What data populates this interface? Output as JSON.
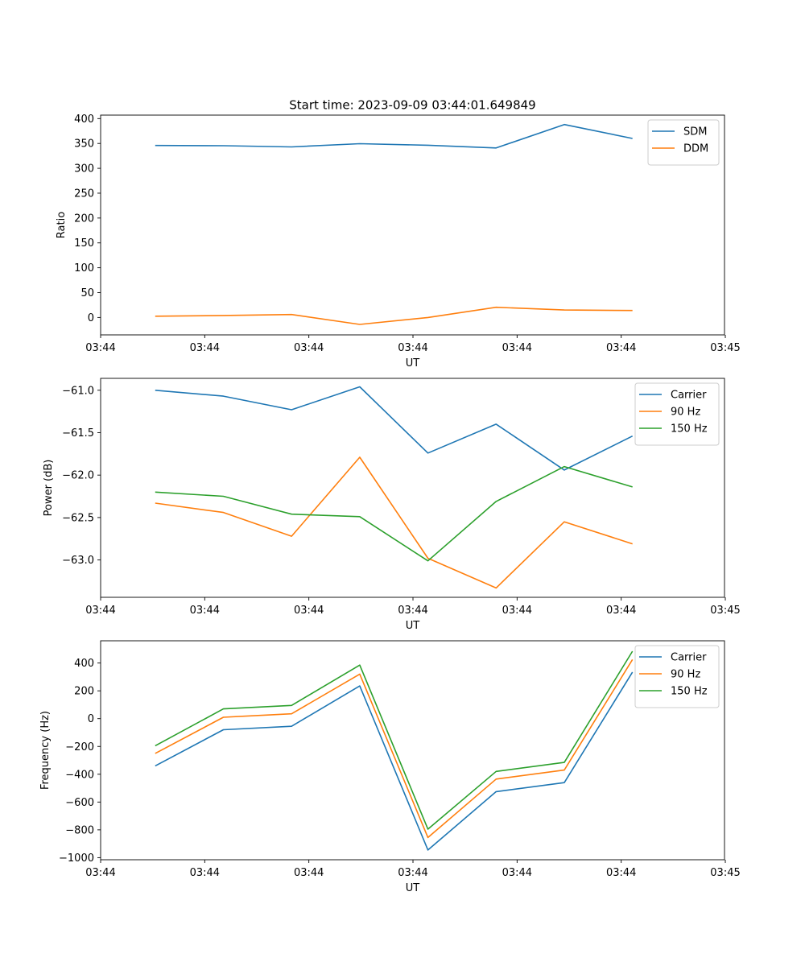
{
  "title": "Start time: 2023-09-09 03:44:01.649849",
  "colors": {
    "blue": "#1f77b4",
    "orange": "#ff7f0e",
    "green": "#2ca02c"
  },
  "chart_data": [
    {
      "type": "line",
      "id": "ratio",
      "xlabel": "UT",
      "ylabel": "Ratio",
      "x": [
        1,
        2,
        3,
        4,
        5,
        6,
        7,
        8
      ],
      "xlim": [
        0.2,
        9.35
      ],
      "x_ticks": [
        {
          "x": 0.2,
          "label": "03:44"
        },
        {
          "x": 1.727,
          "label": "03:44"
        },
        {
          "x": 3.254,
          "label": "03:44"
        },
        {
          "x": 4.781,
          "label": "03:44"
        },
        {
          "x": 6.308,
          "label": "03:44"
        },
        {
          "x": 7.835,
          "label": "03:44"
        },
        {
          "x": 9.362,
          "label": "03:45"
        }
      ],
      "ylim": [
        -35,
        407
      ],
      "y_ticks": [
        {
          "v": 0,
          "label": "0"
        },
        {
          "v": 50,
          "label": "50"
        },
        {
          "v": 100,
          "label": "100"
        },
        {
          "v": 150,
          "label": "150"
        },
        {
          "v": 200,
          "label": "200"
        },
        {
          "v": 250,
          "label": "250"
        },
        {
          "v": 300,
          "label": "300"
        },
        {
          "v": 350,
          "label": "350"
        },
        {
          "v": 400,
          "label": "400"
        }
      ],
      "legend_position": "top-right",
      "series": [
        {
          "name": "SDM",
          "color": "blue",
          "values": [
            346,
            345.5,
            343,
            349.5,
            346.5,
            341,
            388,
            360
          ]
        },
        {
          "name": "DDM",
          "color": "orange",
          "values": [
            2.5,
            4,
            6,
            -14,
            0,
            20.5,
            15,
            14
          ]
        }
      ]
    },
    {
      "type": "line",
      "id": "power",
      "xlabel": "UT",
      "ylabel": "Power (dB)",
      "x": [
        1,
        2,
        3,
        4,
        5,
        6,
        7,
        8
      ],
      "xlim": [
        0.2,
        9.35
      ],
      "x_ticks": [
        {
          "x": 0.2,
          "label": "03:44"
        },
        {
          "x": 1.727,
          "label": "03:44"
        },
        {
          "x": 3.254,
          "label": "03:44"
        },
        {
          "x": 4.781,
          "label": "03:44"
        },
        {
          "x": 6.308,
          "label": "03:44"
        },
        {
          "x": 7.835,
          "label": "03:44"
        },
        {
          "x": 9.362,
          "label": "03:45"
        }
      ],
      "ylim": [
        -63.44,
        -60.86
      ],
      "y_ticks": [
        {
          "v": -63.0,
          "label": "−63.0"
        },
        {
          "v": -62.5,
          "label": "−62.5"
        },
        {
          "v": -62.0,
          "label": "−62.0"
        },
        {
          "v": -61.5,
          "label": "−61.5"
        },
        {
          "v": -61.0,
          "label": "−61.0"
        }
      ],
      "legend_position": "top-right",
      "series": [
        {
          "name": "Carrier",
          "color": "blue",
          "values": [
            -61.0,
            -61.07,
            -61.23,
            -60.96,
            -61.74,
            -61.4,
            -61.94,
            -61.54
          ]
        },
        {
          "name": "90 Hz",
          "color": "orange",
          "values": [
            -62.33,
            -62.44,
            -62.72,
            -61.79,
            -62.98,
            -63.33,
            -62.55,
            -62.81
          ]
        },
        {
          "name": "150 Hz",
          "color": "green",
          "values": [
            -62.2,
            -62.25,
            -62.46,
            -62.49,
            -63.01,
            -62.31,
            -61.9,
            -62.14
          ]
        }
      ]
    },
    {
      "type": "line",
      "id": "frequency",
      "xlabel": "UT",
      "ylabel": "Frequency (Hz)",
      "x": [
        1,
        2,
        3,
        4,
        5,
        6,
        7,
        8
      ],
      "xlim": [
        0.2,
        9.35
      ],
      "x_ticks": [
        {
          "x": 0.2,
          "label": "03:44"
        },
        {
          "x": 1.727,
          "label": "03:44"
        },
        {
          "x": 3.254,
          "label": "03:44"
        },
        {
          "x": 4.781,
          "label": "03:44"
        },
        {
          "x": 6.308,
          "label": "03:44"
        },
        {
          "x": 7.835,
          "label": "03:44"
        },
        {
          "x": 9.362,
          "label": "03:45"
        }
      ],
      "ylim": [
        -1015,
        560
      ],
      "y_ticks": [
        {
          "v": -1000,
          "label": "−1000"
        },
        {
          "v": -800,
          "label": "−800"
        },
        {
          "v": -600,
          "label": "−600"
        },
        {
          "v": -400,
          "label": "−400"
        },
        {
          "v": -200,
          "label": "−200"
        },
        {
          "v": 0,
          "label": "0"
        },
        {
          "v": 200,
          "label": "200"
        },
        {
          "v": 400,
          "label": "400"
        }
      ],
      "legend_position": "top-right",
      "series": [
        {
          "name": "Carrier",
          "color": "blue",
          "values": [
            -340,
            -80,
            -55,
            235,
            -945,
            -525,
            -460,
            335
          ]
        },
        {
          "name": "90 Hz",
          "color": "orange",
          "values": [
            -250,
            10,
            35,
            320,
            -855,
            -435,
            -370,
            425
          ]
        },
        {
          "name": "150 Hz",
          "color": "green",
          "values": [
            -195,
            70,
            95,
            385,
            -795,
            -380,
            -315,
            485
          ]
        }
      ]
    }
  ]
}
